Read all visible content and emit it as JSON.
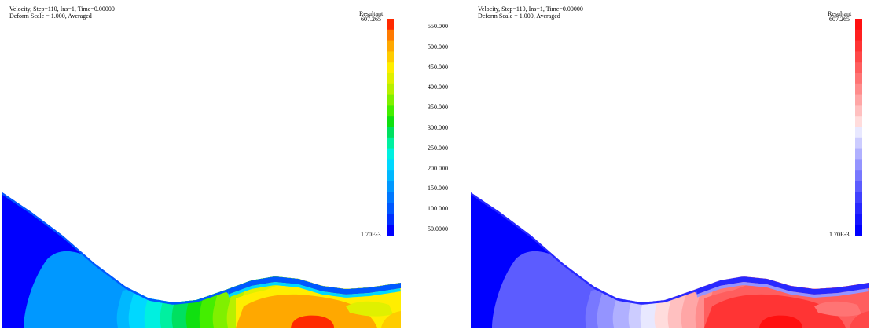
{
  "panels": [
    {
      "header": {
        "line1": "Velocity, Step=110, Ins=1, Time=0.00000",
        "line2": "Deform Scale = 1.000, Averaged"
      },
      "legend": {
        "title": "Resultant",
        "max_label": "607.265",
        "min_label": "1.70E-3",
        "ticks": [
          "550.000",
          "500.000",
          "450.000",
          "400.000",
          "350.000",
          "300.000",
          "250.000",
          "200.000",
          "150.000",
          "100.000",
          "50.0000"
        ],
        "colors": [
          "#ff2a00",
          "#ff7a00",
          "#ffa800",
          "#ffcc00",
          "#ffee00",
          "#e0f000",
          "#b8f000",
          "#80f000",
          "#44ee00",
          "#10e010",
          "#00e060",
          "#00f0a0",
          "#00f0e0",
          "#00d8ff",
          "#00b8ff",
          "#0098ff",
          "#0078ff",
          "#0058ff",
          "#0030ff",
          "#0000ff"
        ]
      },
      "colormap": "rainbow"
    },
    {
      "header": {
        "line1": "Velocity, Step=110, Ins=1, Time=0.00000",
        "line2": "Deform Scale = 1.000, Averaged"
      },
      "legend": {
        "title": "Resultant",
        "max_label": "607.265",
        "min_label": "1.70E-3",
        "ticks": [
          "550.000",
          "500.000",
          "450.000",
          "400.000",
          "350.000",
          "300.000",
          "250.000",
          "200.000",
          "150.000",
          "100.000",
          "50.0000"
        ],
        "colors": [
          "#ff1010",
          "#ff2020",
          "#ff3434",
          "#ff4848",
          "#ff5e5e",
          "#ff7474",
          "#ff8c8c",
          "#ffa6a6",
          "#ffc0c0",
          "#ffdcdc",
          "#e8e8ff",
          "#ccccff",
          "#b0b0ff",
          "#9494ff",
          "#7878ff",
          "#5c5cff",
          "#4040ff",
          "#2828ff",
          "#1414ff",
          "#0000ff"
        ]
      },
      "colormap": "blue-white-red"
    }
  ]
}
